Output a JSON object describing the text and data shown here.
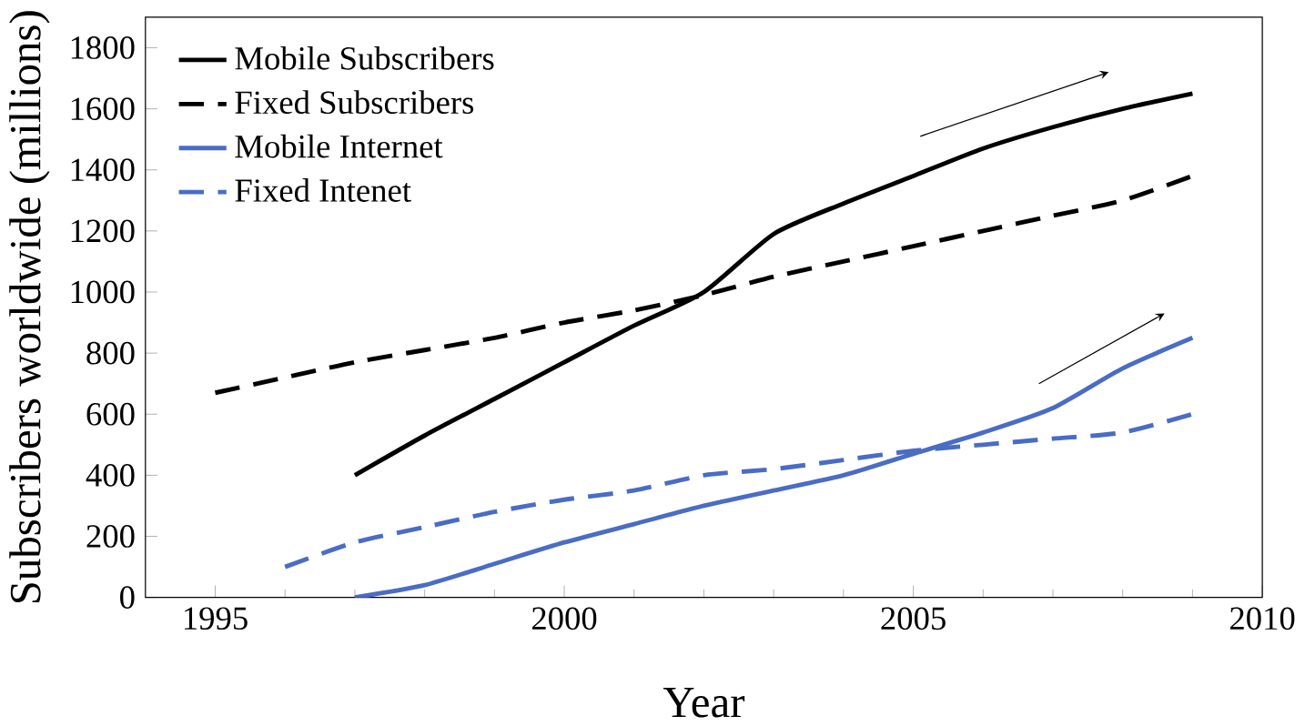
{
  "chart_data": {
    "type": "line",
    "xlabel": "Year",
    "ylabel": "Subscribers worldwide (millions)",
    "xlim": [
      1994,
      2010
    ],
    "xticks": [
      1995,
      2000,
      2005,
      2010
    ],
    "ylim": [
      0,
      1900
    ],
    "yticks": [
      0,
      200,
      400,
      600,
      800,
      1000,
      1200,
      1400,
      1600,
      1800
    ],
    "grid": false,
    "legend": "top left",
    "marker": "none",
    "series": [
      {
        "name": "Mobile Subscribers",
        "color": "#000000",
        "line_style": "solid",
        "x": [
          1997,
          1998,
          1999,
          2000,
          2001,
          2002,
          2003,
          2004,
          2005,
          2006,
          2007,
          2008,
          2009
        ],
        "values": [
          400,
          530,
          650,
          770,
          890,
          1000,
          1190,
          1290,
          1380,
          1470,
          1540,
          1600,
          1650
        ]
      },
      {
        "name": "Fixed Subscribers",
        "color": "#000000",
        "line_style": "dashed",
        "x": [
          1995,
          1996,
          1997,
          1998,
          1999,
          2000,
          2001,
          2002,
          2003,
          2004,
          2005,
          2006,
          2007,
          2008,
          2009
        ],
        "values": [
          670,
          720,
          770,
          810,
          850,
          900,
          940,
          990,
          1050,
          1100,
          1150,
          1200,
          1250,
          1300,
          1380
        ]
      },
      {
        "name": "Mobile Internet",
        "color": "#4a6cc4",
        "line_style": "solid",
        "x": [
          1997,
          1998,
          1999,
          2000,
          2001,
          2002,
          2003,
          2004,
          2005,
          2006,
          2007,
          2008,
          2009
        ],
        "values": [
          0,
          40,
          110,
          180,
          240,
          300,
          350,
          400,
          470,
          540,
          620,
          750,
          850
        ]
      },
      {
        "name": "Fixed Intenet",
        "color": "#4a6cc4",
        "line_style": "dashed",
        "x": [
          1996,
          1997,
          1998,
          1999,
          2000,
          2001,
          2002,
          2003,
          2004,
          2005,
          2006,
          2007,
          2008,
          2009
        ],
        "values": [
          100,
          180,
          230,
          280,
          320,
          350,
          400,
          420,
          450,
          480,
          500,
          520,
          540,
          600
        ]
      }
    ]
  }
}
